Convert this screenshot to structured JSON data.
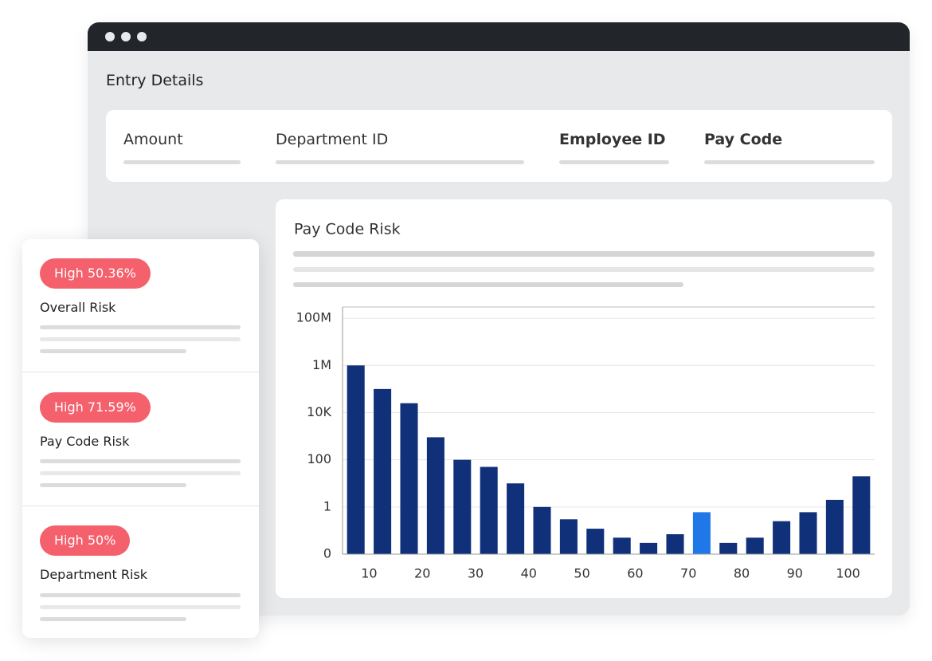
{
  "window": {
    "title": "Entry Details",
    "fields": [
      "Amount",
      "Department ID",
      "Employee ID",
      "Pay Code"
    ]
  },
  "risk_panel": {
    "items": [
      {
        "badge": "High 50.36%",
        "label": "Overall Risk"
      },
      {
        "badge": "High 71.59%",
        "label": "Pay Code Risk"
      },
      {
        "badge": "High 50%",
        "label": "Department Risk"
      }
    ]
  },
  "chart_data": {
    "type": "histogram",
    "title": "Pay Code Risk",
    "bins": [
      5,
      10,
      15,
      20,
      25,
      30,
      35,
      40,
      45,
      50,
      55,
      60,
      65,
      70,
      75,
      80,
      85,
      90,
      95,
      100,
      105
    ],
    "values": [
      1000000,
      100000,
      25000,
      900,
      100,
      50,
      10,
      1,
      0.3,
      0.12,
      0.05,
      0.03,
      0.07,
      0.6,
      0.03,
      0.05,
      0.25,
      0.6,
      2,
      20
    ],
    "colors": [
      "#10307a",
      "#10307a",
      "#10307a",
      "#10307a",
      "#10307a",
      "#10307a",
      "#10307a",
      "#10307a",
      "#10307a",
      "#10307a",
      "#10307a",
      "#10307a",
      "#10307a",
      "#1f77e8",
      "#10307a",
      "#10307a",
      "#10307a",
      "#10307a",
      "#10307a",
      "#10307a"
    ],
    "xlim": [
      5,
      105
    ],
    "xticks": [
      10,
      20,
      30,
      40,
      50,
      60,
      70,
      80,
      90,
      100
    ],
    "ylim": [
      0.01,
      300000000
    ],
    "log_y": true,
    "yticks": [
      {
        "value": 0.01,
        "label": "0"
      },
      1,
      100,
      {
        "value": 10000,
        "label": "10K"
      },
      {
        "value": 1000000,
        "label": "1M"
      },
      {
        "value": 100000000,
        "label": "100M"
      }
    ],
    "grid": true
  }
}
